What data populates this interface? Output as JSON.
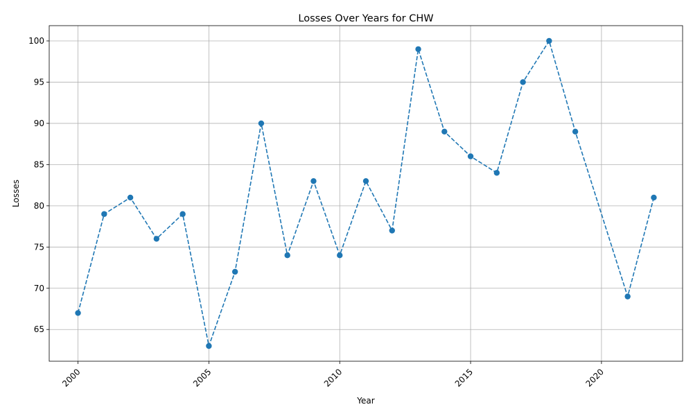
{
  "chart_data": {
    "type": "line",
    "title": "Losses Over Years for CHW",
    "xlabel": "Year",
    "ylabel": "Losses",
    "x": [
      2000,
      2001,
      2002,
      2003,
      2004,
      2005,
      2006,
      2007,
      2008,
      2009,
      2010,
      2011,
      2012,
      2013,
      2014,
      2015,
      2016,
      2017,
      2018,
      2019,
      2021,
      2022
    ],
    "series": [
      {
        "values": [
          67,
          79,
          81,
          76,
          79,
          63,
          72,
          90,
          74,
          83,
          74,
          83,
          77,
          99,
          89,
          86,
          84,
          95,
          100,
          89,
          69,
          81
        ],
        "color": "#1f77b4",
        "line_style": "dashed",
        "marker": "circle"
      }
    ],
    "xlim": [
      1998.9,
      2023.1
    ],
    "ylim": [
      61.15,
      101.85
    ],
    "xticks": [
      2000,
      2005,
      2010,
      2015,
      2020
    ],
    "yticks": [
      65,
      70,
      75,
      80,
      85,
      90,
      95,
      100
    ],
    "xtick_rotation": 45,
    "grid": true
  }
}
